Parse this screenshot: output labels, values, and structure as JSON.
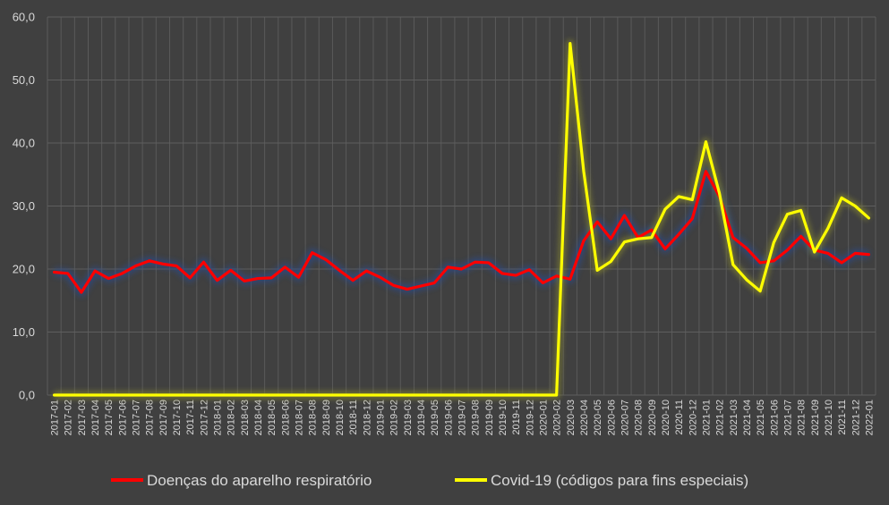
{
  "chart_data": {
    "type": "line",
    "title": "",
    "xlabel": "",
    "ylabel": "",
    "ylim": [
      0,
      60
    ],
    "yticks": [
      "0,0",
      "10,0",
      "20,0",
      "30,0",
      "40,0",
      "50,0",
      "60,0"
    ],
    "grid": true,
    "legend_position": "bottom",
    "categories": [
      "2017-01",
      "2017-02",
      "2017-03",
      "2017-04",
      "2017-05",
      "2017-06",
      "2017-07",
      "2017-08",
      "2017-09",
      "2017-10",
      "2017-11",
      "2017-12",
      "2018-01",
      "2018-02",
      "2018-03",
      "2018-04",
      "2018-05",
      "2018-06",
      "2018-07",
      "2018-08",
      "2018-09",
      "2018-10",
      "2018-11",
      "2018-12",
      "2019-01",
      "2019-02",
      "2019-03",
      "2019-04",
      "2019-05",
      "2019-06",
      "2019-07",
      "2019-08",
      "2019-09",
      "2019-10",
      "2019-11",
      "2019-12",
      "2020-01",
      "2020-02",
      "2020-03",
      "2020-04",
      "2020-05",
      "2020-06",
      "2020-07",
      "2020-08",
      "2020-09",
      "2020-10",
      "2020-11",
      "2020-12",
      "2021-01",
      "2021-02",
      "2021-03",
      "2021-04",
      "2021-05",
      "2021-06",
      "2021-07",
      "2021-08",
      "2021-09",
      "2021-10",
      "2021-11",
      "2021-12",
      "2022-01"
    ],
    "series": [
      {
        "name": "Doenças do aparelho respiratório",
        "color": "#ff0000",
        "values": [
          19.5,
          19.3,
          16.3,
          19.7,
          18.5,
          19.3,
          20.5,
          21.3,
          20.8,
          20.5,
          18.6,
          21.1,
          18.2,
          19.8,
          18.1,
          18.5,
          18.6,
          20.3,
          18.7,
          22.6,
          21.5,
          19.8,
          18.2,
          19.7,
          18.7,
          17.4,
          16.8,
          17.3,
          17.8,
          20.3,
          20.0,
          21.1,
          21.0,
          19.3,
          19.0,
          19.9,
          17.8,
          18.9,
          18.4,
          24.5,
          27.5,
          24.8,
          28.5,
          25.0,
          26.2,
          23.2,
          25.5,
          28.0,
          35.5,
          31.5,
          25.0,
          23.3,
          21.0,
          21.3,
          23.0,
          25.2,
          23.0,
          22.5,
          21.0,
          22.5,
          22.3
        ]
      },
      {
        "name": "Covid-19 (códigos para fins especiais)",
        "color": "#ffff00",
        "values": [
          0,
          0,
          0,
          0,
          0,
          0,
          0,
          0,
          0,
          0,
          0,
          0,
          0,
          0,
          0,
          0,
          0,
          0,
          0,
          0,
          0,
          0,
          0,
          0,
          0,
          0,
          0,
          0,
          0,
          0,
          0,
          0,
          0,
          0,
          0,
          0,
          0,
          0,
          55.8,
          35.5,
          19.8,
          21.2,
          24.3,
          24.8,
          25.0,
          29.5,
          31.5,
          31.0,
          40.2,
          32.0,
          20.7,
          18.3,
          16.5,
          24.2,
          28.7,
          29.3,
          22.7,
          26.5,
          31.3,
          30.0,
          28.1
        ]
      }
    ]
  }
}
